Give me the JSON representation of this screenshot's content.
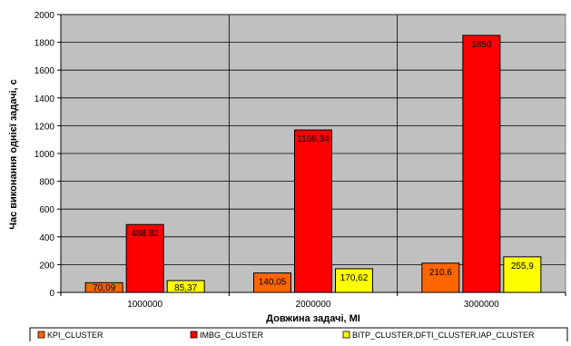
{
  "chart_data": {
    "type": "bar",
    "title": "",
    "xlabel": "Довжина задачі, MI",
    "ylabel": "Час виконання однієї задачі, с",
    "categories": [
      "1000000",
      "2000000",
      "3000000"
    ],
    "ylim": [
      0,
      2000
    ],
    "yticks": [
      0,
      200,
      400,
      600,
      800,
      1000,
      1200,
      1400,
      1600,
      1800,
      2000
    ],
    "grid": true,
    "legend_position": "bottom",
    "series": [
      {
        "name": "KPI_CLUSTER",
        "values": [
          70.09,
          140.05,
          210.6
        ],
        "labels": [
          "70,09",
          "140,05",
          "210,6"
        ],
        "color": "#ff6600"
      },
      {
        "name": "IMBG_CLUSTER",
        "values": [
          488.82,
          1169.34,
          1850
        ],
        "labels": [
          "488,82",
          "1169,34",
          "1850"
        ],
        "color": "#ff0000"
      },
      {
        "name": "BITP_CLUSTER,DFTI_CLUSTER,IAP_CLUSTER",
        "values": [
          85.37,
          170.62,
          255.9
        ],
        "labels": [
          "85,37",
          "170,62",
          "255,9"
        ],
        "color": "#ffff00"
      }
    ]
  }
}
